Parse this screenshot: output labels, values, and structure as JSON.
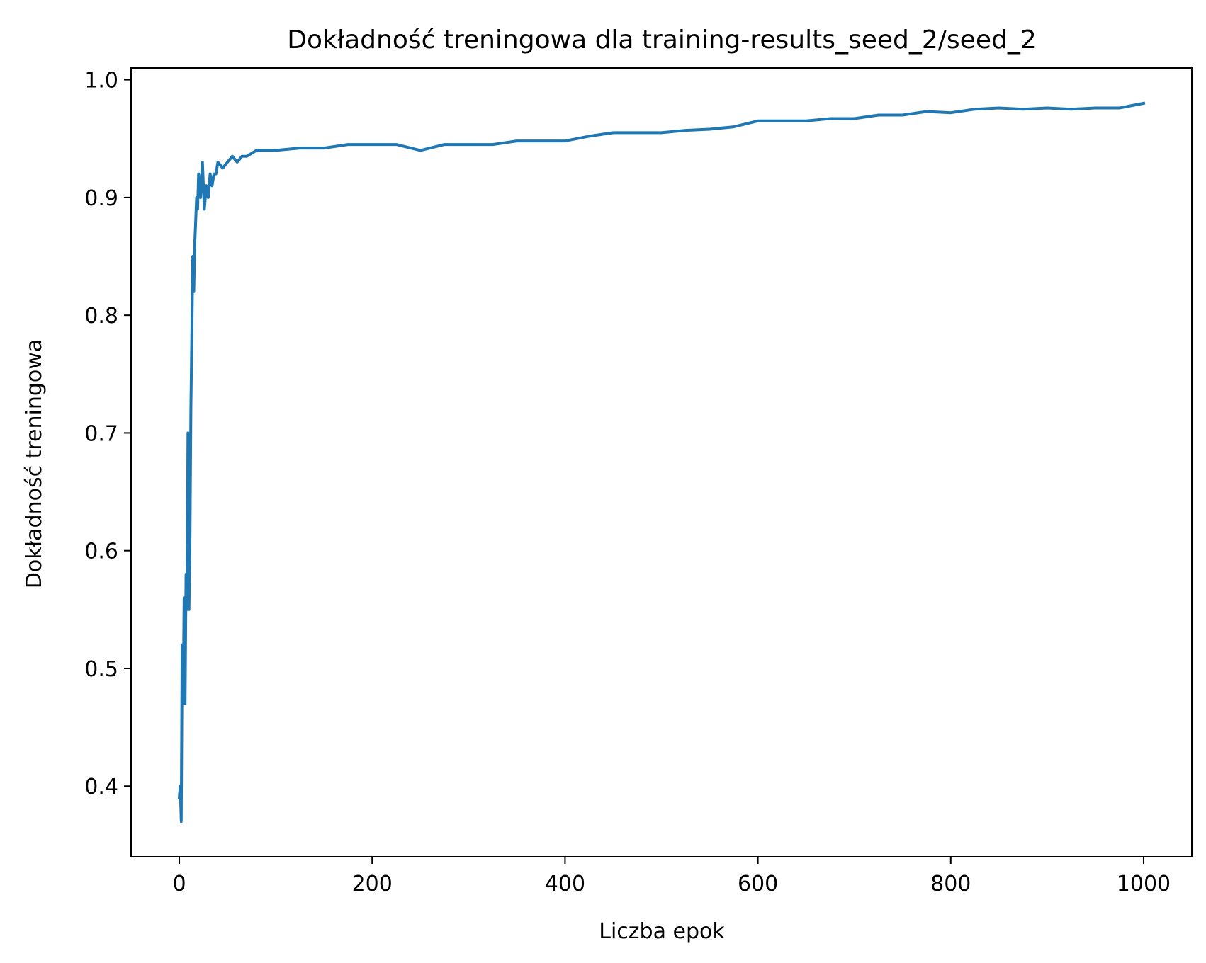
{
  "chart_data": {
    "type": "line",
    "title": "Dokładność treningowa dla training-results_seed_2/seed_2",
    "xlabel": "Liczba epok",
    "ylabel": "Dokładność treningowa",
    "xlim": [
      -50,
      1050
    ],
    "ylim": [
      0.34,
      1.01
    ],
    "xticks": [
      0,
      200,
      400,
      600,
      800,
      1000
    ],
    "xtick_labels": [
      "0",
      "200",
      "400",
      "600",
      "800",
      "1000"
    ],
    "yticks": [
      0.4,
      0.5,
      0.6,
      0.7,
      0.8,
      0.9,
      1.0
    ],
    "ytick_labels": [
      "0.4",
      "0.5",
      "0.6",
      "0.7",
      "0.8",
      "0.9",
      "1.0"
    ],
    "grid": false,
    "series": [
      {
        "color": "#1f77b4",
        "x": [
          0,
          1,
          2,
          3,
          4,
          5,
          6,
          7,
          8,
          9,
          10,
          11,
          12,
          13,
          14,
          15,
          16,
          17,
          18,
          19,
          20,
          22,
          24,
          26,
          28,
          30,
          32,
          34,
          36,
          38,
          40,
          45,
          50,
          55,
          60,
          65,
          70,
          80,
          90,
          100,
          125,
          150,
          175,
          200,
          225,
          250,
          275,
          300,
          325,
          350,
          375,
          400,
          425,
          450,
          475,
          500,
          525,
          550,
          575,
          600,
          625,
          650,
          675,
          700,
          725,
          750,
          775,
          800,
          825,
          850,
          875,
          900,
          925,
          950,
          975,
          1000
        ],
        "y": [
          0.39,
          0.4,
          0.37,
          0.52,
          0.47,
          0.56,
          0.47,
          0.58,
          0.55,
          0.7,
          0.55,
          0.6,
          0.72,
          0.78,
          0.85,
          0.82,
          0.86,
          0.88,
          0.9,
          0.89,
          0.92,
          0.9,
          0.93,
          0.89,
          0.91,
          0.9,
          0.92,
          0.91,
          0.92,
          0.92,
          0.93,
          0.925,
          0.93,
          0.935,
          0.93,
          0.935,
          0.935,
          0.94,
          0.94,
          0.94,
          0.942,
          0.942,
          0.945,
          0.945,
          0.945,
          0.94,
          0.945,
          0.945,
          0.945,
          0.948,
          0.948,
          0.948,
          0.952,
          0.955,
          0.955,
          0.955,
          0.957,
          0.958,
          0.96,
          0.965,
          0.965,
          0.965,
          0.967,
          0.967,
          0.97,
          0.97,
          0.973,
          0.972,
          0.975,
          0.976,
          0.975,
          0.976,
          0.975,
          0.976,
          0.976,
          0.98
        ]
      }
    ]
  }
}
